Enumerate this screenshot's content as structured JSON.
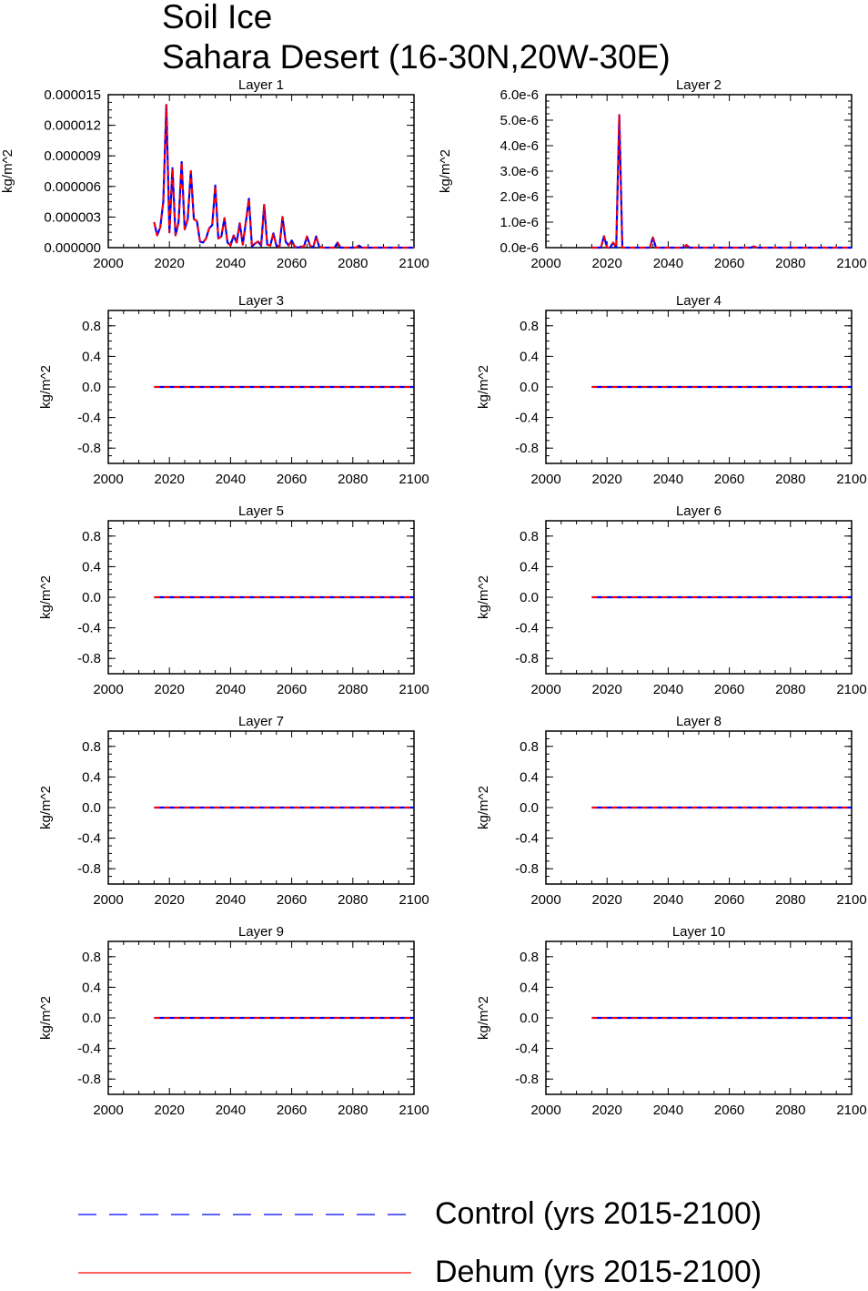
{
  "header": {
    "title_line1": "Soil Ice",
    "title_line2": "Sahara Desert (16-30N,20W-30E)"
  },
  "legend": {
    "control_label": "Control (yrs 2015-2100)",
    "dehum_label": "Dehum (yrs 2015-2100)",
    "control_color": "#0000ff",
    "dehum_color": "#ff0000"
  },
  "chart_data": [
    {
      "type": "line",
      "title": "Layer 1",
      "ylabel": "kg/m^2",
      "xlim": [
        2000,
        2100
      ],
      "ylim": [
        0,
        1.5e-05
      ],
      "xticks": [
        2000,
        2020,
        2040,
        2060,
        2080,
        2100
      ],
      "yticks": [
        0,
        3e-06,
        6e-06,
        9e-06,
        1.2e-05,
        1.5e-05
      ],
      "ytick_labels": [
        "0.000000",
        "0.000003",
        "0.000006",
        "0.000009",
        "0.000012",
        "0.000015"
      ],
      "x": [
        2015,
        2016,
        2017,
        2018,
        2019,
        2020,
        2021,
        2022,
        2023,
        2024,
        2025,
        2026,
        2027,
        2028,
        2029,
        2030,
        2031,
        2032,
        2033,
        2034,
        2035,
        2036,
        2037,
        2038,
        2039,
        2040,
        2041,
        2042,
        2043,
        2044,
        2045,
        2046,
        2047,
        2048,
        2049,
        2050,
        2051,
        2052,
        2053,
        2054,
        2055,
        2056,
        2057,
        2058,
        2059,
        2060,
        2061,
        2062,
        2063,
        2064,
        2065,
        2066,
        2067,
        2068,
        2069,
        2070,
        2071,
        2072,
        2073,
        2074,
        2075,
        2076,
        2077,
        2078,
        2079,
        2080,
        2081,
        2082,
        2083,
        2084,
        2085,
        2086,
        2087,
        2088,
        2089,
        2090,
        2091,
        2092,
        2093,
        2094,
        2095,
        2096,
        2097,
        2098,
        2099,
        2100
      ],
      "series": [
        {
          "name": "Control (yrs 2015-2100)",
          "color": "#0000ff",
          "values": [
            2.5e-06,
            1.2e-06,
            2e-06,
            4.5e-06,
            1.4e-05,
            1.5e-06,
            7.8e-06,
            1.2e-06,
            2.5e-06,
            8.4e-06,
            1.8e-06,
            2.8e-06,
            7.5e-06,
            2.8e-06,
            2.6e-06,
            6e-07,
            5e-07,
            9e-07,
            1.9e-06,
            2.2e-06,
            6.1e-06,
            9e-07,
            1.1e-06,
            2.9e-06,
            5e-07,
            2e-07,
            1.2e-06,
            5e-07,
            2.4e-06,
            3e-07,
            2.5e-06,
            4.8e-06,
            1e-07,
            4e-07,
            6e-07,
            2e-07,
            4.2e-06,
            3e-07,
            2e-07,
            1.4e-06,
            2e-07,
            1e-07,
            3e-06,
            6e-07,
            2e-07,
            7e-07,
            1e-07,
            0,
            1e-07,
            1e-07,
            1.1e-06,
            2e-07,
            0,
            1.1e-06,
            1e-07,
            0,
            0,
            0,
            0,
            0,
            5e-07,
            0,
            0,
            0,
            0,
            0,
            0,
            2e-07,
            0,
            0,
            0,
            0,
            0,
            0,
            0,
            0,
            0,
            0,
            0,
            0,
            0,
            0,
            0,
            0,
            0,
            0
          ]
        },
        {
          "name": "Dehum (yrs 2015-2100)",
          "color": "#ff0000",
          "values": [
            2.5e-06,
            1.2e-06,
            2e-06,
            4.5e-06,
            1.4e-05,
            1.5e-06,
            7.8e-06,
            1.2e-06,
            2.5e-06,
            8.4e-06,
            1.8e-06,
            2.8e-06,
            7.5e-06,
            2.8e-06,
            2.6e-06,
            6e-07,
            5e-07,
            9e-07,
            1.9e-06,
            2.2e-06,
            6.1e-06,
            9e-07,
            1.1e-06,
            2.9e-06,
            5e-07,
            2e-07,
            1.2e-06,
            5e-07,
            2.4e-06,
            3e-07,
            2.5e-06,
            4.8e-06,
            1e-07,
            4e-07,
            6e-07,
            2e-07,
            4.2e-06,
            3e-07,
            2e-07,
            1.4e-06,
            2e-07,
            1e-07,
            3e-06,
            6e-07,
            2e-07,
            7e-07,
            1e-07,
            0,
            1e-07,
            1e-07,
            1.1e-06,
            2e-07,
            0,
            1.1e-06,
            1e-07,
            0,
            0,
            0,
            0,
            0,
            5e-07,
            0,
            0,
            0,
            0,
            0,
            0,
            2e-07,
            0,
            0,
            0,
            0,
            0,
            0,
            0,
            0,
            0,
            0,
            0,
            0,
            0,
            0,
            0,
            0,
            0,
            0
          ]
        }
      ]
    },
    {
      "type": "line",
      "title": "Layer 2",
      "ylabel": "kg/m^2",
      "xlim": [
        2000,
        2100
      ],
      "ylim": [
        0,
        6e-06
      ],
      "xticks": [
        2000,
        2020,
        2040,
        2060,
        2080,
        2100
      ],
      "yticks": [
        0,
        1e-06,
        2e-06,
        3e-06,
        4e-06,
        5e-06,
        6e-06
      ],
      "ytick_labels": [
        "0.0e-6",
        "1.0e-6",
        "2.0e-6",
        "3.0e-6",
        "4.0e-6",
        "5.0e-6",
        "6.0e-6"
      ],
      "x": [
        2015,
        2016,
        2017,
        2018,
        2019,
        2020,
        2021,
        2022,
        2023,
        2024,
        2025,
        2026,
        2027,
        2028,
        2029,
        2030,
        2031,
        2032,
        2033,
        2034,
        2035,
        2036,
        2037,
        2038,
        2039,
        2040,
        2041,
        2042,
        2043,
        2044,
        2045,
        2046,
        2047,
        2048,
        2049,
        2050,
        2051,
        2052,
        2053,
        2054,
        2055,
        2056,
        2057,
        2058,
        2059,
        2060,
        2061,
        2062,
        2063,
        2064,
        2065,
        2066,
        2067,
        2068,
        2069,
        2070,
        2071,
        2072,
        2073,
        2074,
        2075,
        2076,
        2077,
        2078,
        2079,
        2080,
        2081,
        2082,
        2083,
        2084,
        2085,
        2086,
        2087,
        2088,
        2089,
        2090,
        2091,
        2092,
        2093,
        2094,
        2095,
        2096,
        2097,
        2098,
        2099,
        2100
      ],
      "series": [
        {
          "name": "Control (yrs 2015-2100)",
          "color": "#0000ff",
          "values": [
            0,
            0,
            0,
            0,
            4.5e-07,
            0,
            0,
            2e-07,
            0,
            5.2e-06,
            0,
            0,
            0,
            0,
            0,
            0,
            0,
            0,
            0,
            0,
            4e-07,
            0,
            0,
            0,
            0,
            0,
            0,
            0,
            0,
            0,
            0,
            1e-07,
            0,
            0,
            0,
            0,
            0,
            0,
            0,
            0,
            0,
            0,
            0,
            0,
            0,
            0,
            0,
            0,
            0,
            0,
            0,
            0,
            0,
            5e-08,
            0,
            0,
            0,
            0,
            0,
            0,
            0,
            0,
            0,
            0,
            0,
            0,
            0,
            0,
            0,
            0,
            0,
            0,
            0,
            0,
            0,
            0,
            0,
            0,
            0,
            0,
            0,
            0,
            0,
            0,
            0,
            0
          ]
        },
        {
          "name": "Dehum (yrs 2015-2100)",
          "color": "#ff0000",
          "values": [
            0,
            0,
            0,
            0,
            4.5e-07,
            0,
            0,
            2e-07,
            0,
            5.2e-06,
            0,
            0,
            0,
            0,
            0,
            0,
            0,
            0,
            0,
            0,
            4e-07,
            0,
            0,
            0,
            0,
            0,
            0,
            0,
            0,
            0,
            0,
            1e-07,
            0,
            0,
            0,
            0,
            0,
            0,
            0,
            0,
            0,
            0,
            0,
            0,
            0,
            0,
            0,
            0,
            0,
            0,
            0,
            0,
            0,
            5e-08,
            0,
            0,
            0,
            0,
            0,
            0,
            0,
            0,
            0,
            0,
            0,
            0,
            0,
            0,
            0,
            0,
            0,
            0,
            0,
            0,
            0,
            0,
            0,
            0,
            0,
            0,
            0,
            0,
            0,
            0,
            0,
            0
          ]
        }
      ]
    },
    {
      "type": "line",
      "title": "Layer 3",
      "ylabel": "kg/m^2",
      "xlim": [
        2000,
        2100
      ],
      "ylim": [
        -1,
        1
      ],
      "xticks": [
        2000,
        2020,
        2040,
        2060,
        2080,
        2100
      ],
      "yticks": [
        -0.8,
        -0.4,
        0,
        0.4,
        0.8
      ],
      "ytick_labels": [
        "-0.8",
        "-0.4",
        "0.0",
        "0.4",
        "0.8"
      ],
      "x": [
        2015,
        2100
      ],
      "series": [
        {
          "name": "Control (yrs 2015-2100)",
          "color": "#0000ff",
          "values": [
            0,
            0
          ]
        },
        {
          "name": "Dehum (yrs 2015-2100)",
          "color": "#ff0000",
          "values": [
            0,
            0
          ]
        }
      ]
    },
    {
      "type": "line",
      "title": "Layer 4",
      "ylabel": "kg/m^2",
      "xlim": [
        2000,
        2100
      ],
      "ylim": [
        -1,
        1
      ],
      "xticks": [
        2000,
        2020,
        2040,
        2060,
        2080,
        2100
      ],
      "yticks": [
        -0.8,
        -0.4,
        0,
        0.4,
        0.8
      ],
      "ytick_labels": [
        "-0.8",
        "-0.4",
        "0.0",
        "0.4",
        "0.8"
      ],
      "x": [
        2015,
        2100
      ],
      "series": [
        {
          "name": "Control (yrs 2015-2100)",
          "color": "#0000ff",
          "values": [
            0,
            0
          ]
        },
        {
          "name": "Dehum (yrs 2015-2100)",
          "color": "#ff0000",
          "values": [
            0,
            0
          ]
        }
      ]
    },
    {
      "type": "line",
      "title": "Layer 5",
      "ylabel": "kg/m^2",
      "xlim": [
        2000,
        2100
      ],
      "ylim": [
        -1,
        1
      ],
      "xticks": [
        2000,
        2020,
        2040,
        2060,
        2080,
        2100
      ],
      "yticks": [
        -0.8,
        -0.4,
        0,
        0.4,
        0.8
      ],
      "ytick_labels": [
        "-0.8",
        "-0.4",
        "0.0",
        "0.4",
        "0.8"
      ],
      "x": [
        2015,
        2100
      ],
      "series": [
        {
          "name": "Control (yrs 2015-2100)",
          "color": "#0000ff",
          "values": [
            0,
            0
          ]
        },
        {
          "name": "Dehum (yrs 2015-2100)",
          "color": "#ff0000",
          "values": [
            0,
            0
          ]
        }
      ]
    },
    {
      "type": "line",
      "title": "Layer 6",
      "ylabel": "kg/m^2",
      "xlim": [
        2000,
        2100
      ],
      "ylim": [
        -1,
        1
      ],
      "xticks": [
        2000,
        2020,
        2040,
        2060,
        2080,
        2100
      ],
      "yticks": [
        -0.8,
        -0.4,
        0,
        0.4,
        0.8
      ],
      "ytick_labels": [
        "-0.8",
        "-0.4",
        "0.0",
        "0.4",
        "0.8"
      ],
      "x": [
        2015,
        2100
      ],
      "series": [
        {
          "name": "Control (yrs 2015-2100)",
          "color": "#0000ff",
          "values": [
            0,
            0
          ]
        },
        {
          "name": "Dehum (yrs 2015-2100)",
          "color": "#ff0000",
          "values": [
            0,
            0
          ]
        }
      ]
    },
    {
      "type": "line",
      "title": "Layer 7",
      "ylabel": "kg/m^2",
      "xlim": [
        2000,
        2100
      ],
      "ylim": [
        -1,
        1
      ],
      "xticks": [
        2000,
        2020,
        2040,
        2060,
        2080,
        2100
      ],
      "yticks": [
        -0.8,
        -0.4,
        0,
        0.4,
        0.8
      ],
      "ytick_labels": [
        "-0.8",
        "-0.4",
        "0.0",
        "0.4",
        "0.8"
      ],
      "x": [
        2015,
        2100
      ],
      "series": [
        {
          "name": "Control (yrs 2015-2100)",
          "color": "#0000ff",
          "values": [
            0,
            0
          ]
        },
        {
          "name": "Dehum (yrs 2015-2100)",
          "color": "#ff0000",
          "values": [
            0,
            0
          ]
        }
      ]
    },
    {
      "type": "line",
      "title": "Layer 8",
      "ylabel": "kg/m^2",
      "xlim": [
        2000,
        2100
      ],
      "ylim": [
        -1,
        1
      ],
      "xticks": [
        2000,
        2020,
        2040,
        2060,
        2080,
        2100
      ],
      "yticks": [
        -0.8,
        -0.4,
        0,
        0.4,
        0.8
      ],
      "ytick_labels": [
        "-0.8",
        "-0.4",
        "0.0",
        "0.4",
        "0.8"
      ],
      "x": [
        2015,
        2100
      ],
      "series": [
        {
          "name": "Control (yrs 2015-2100)",
          "color": "#0000ff",
          "values": [
            0,
            0
          ]
        },
        {
          "name": "Dehum (yrs 2015-2100)",
          "color": "#ff0000",
          "values": [
            0,
            0
          ]
        }
      ]
    },
    {
      "type": "line",
      "title": "Layer 9",
      "ylabel": "kg/m^2",
      "xlim": [
        2000,
        2100
      ],
      "ylim": [
        -1,
        1
      ],
      "xticks": [
        2000,
        2020,
        2040,
        2060,
        2080,
        2100
      ],
      "yticks": [
        -0.8,
        -0.4,
        0,
        0.4,
        0.8
      ],
      "ytick_labels": [
        "-0.8",
        "-0.4",
        "0.0",
        "0.4",
        "0.8"
      ],
      "x": [
        2015,
        2100
      ],
      "series": [
        {
          "name": "Control (yrs 2015-2100)",
          "color": "#0000ff",
          "values": [
            0,
            0
          ]
        },
        {
          "name": "Dehum (yrs 2015-2100)",
          "color": "#ff0000",
          "values": [
            0,
            0
          ]
        }
      ]
    },
    {
      "type": "line",
      "title": "Layer 10",
      "ylabel": "kg/m^2",
      "xlim": [
        2000,
        2100
      ],
      "ylim": [
        -1,
        1
      ],
      "xticks": [
        2000,
        2020,
        2040,
        2060,
        2080,
        2100
      ],
      "yticks": [
        -0.8,
        -0.4,
        0,
        0.4,
        0.8
      ],
      "ytick_labels": [
        "-0.8",
        "-0.4",
        "0.0",
        "0.4",
        "0.8"
      ],
      "x": [
        2015,
        2100
      ],
      "series": [
        {
          "name": "Control (yrs 2015-2100)",
          "color": "#0000ff",
          "values": [
            0,
            0
          ]
        },
        {
          "name": "Dehum (yrs 2015-2100)",
          "color": "#ff0000",
          "values": [
            0,
            0
          ]
        }
      ]
    }
  ]
}
